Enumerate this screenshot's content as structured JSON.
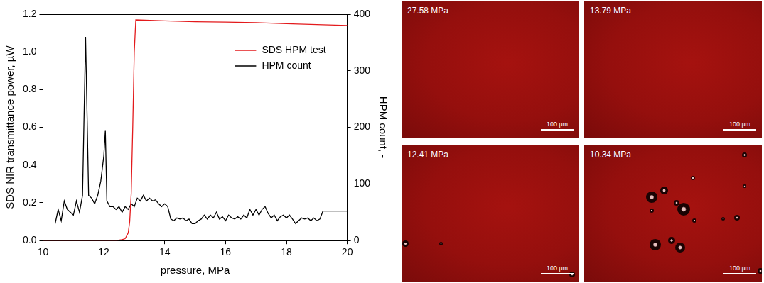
{
  "chart_data": {
    "type": "line",
    "x_label": "pressure, MPa",
    "y_label": "SDS NIR transmittance power, µW",
    "y2_label": "HPM count, -",
    "xlim": [
      10,
      20
    ],
    "xticks": [
      10,
      12,
      14,
      16,
      18,
      20
    ],
    "ylim": [
      0,
      1.2
    ],
    "yticks": [
      {
        "value": 0,
        "label": "0.0"
      },
      0.2,
      0.4,
      0.6,
      0.8,
      {
        "value": 1,
        "label": "1.0"
      },
      1.2
    ],
    "y2lim": [
      0,
      400
    ],
    "y2ticks": [
      0,
      100,
      200,
      300,
      400
    ],
    "grid": false,
    "legend": "upper right",
    "series": [
      {
        "name": "SDS HPM test",
        "color": "#e31a1c",
        "axis": "y",
        "x": [
          10,
          11,
          12,
          12.4,
          12.6,
          12.7,
          12.8,
          12.85,
          12.9,
          12.95,
          13.0,
          13.05,
          14,
          15,
          16,
          17,
          18,
          19,
          20
        ],
        "values": [
          0,
          0,
          0,
          0,
          0.005,
          0.01,
          0.04,
          0.1,
          0.25,
          0.6,
          1.0,
          1.17,
          1.165,
          1.16,
          1.158,
          1.155,
          1.15,
          1.145,
          1.14
        ]
      },
      {
        "name": "HPM count",
        "color": "#000000",
        "axis": "y2",
        "x": [
          10.4,
          10.5,
          10.6,
          10.7,
          10.8,
          10.9,
          11.0,
          11.1,
          11.2,
          11.3,
          11.4,
          11.5,
          11.6,
          11.7,
          11.8,
          11.9,
          12.0,
          12.05,
          12.1,
          12.2,
          12.3,
          12.4,
          12.5,
          12.6,
          12.7,
          12.8,
          12.9,
          13.0,
          13.1,
          13.2,
          13.3,
          13.4,
          13.5,
          13.6,
          13.7,
          13.8,
          13.9,
          14.0,
          14.1,
          14.2,
          14.3,
          14.4,
          14.5,
          14.6,
          14.7,
          14.8,
          14.9,
          15.0,
          15.1,
          15.2,
          15.3,
          15.4,
          15.5,
          15.6,
          15.7,
          15.8,
          15.9,
          16.0,
          16.1,
          16.2,
          16.3,
          16.4,
          16.5,
          16.6,
          16.7,
          16.8,
          16.9,
          17.0,
          17.1,
          17.2,
          17.3,
          17.4,
          17.5,
          17.6,
          17.7,
          17.8,
          17.9,
          18.0,
          18.1,
          18.2,
          18.3,
          18.4,
          18.5,
          18.6,
          18.7,
          18.8,
          18.9,
          19.0,
          19.1,
          19.2,
          19.3,
          19.4,
          19.5,
          19.6,
          19.7,
          19.8,
          19.9,
          20.0
        ],
        "values": [
          30,
          55,
          35,
          70,
          55,
          50,
          45,
          70,
          50,
          80,
          360,
          80,
          75,
          65,
          80,
          105,
          150,
          195,
          70,
          60,
          60,
          55,
          60,
          50,
          60,
          55,
          65,
          60,
          75,
          70,
          80,
          70,
          75,
          70,
          72,
          65,
          60,
          65,
          60,
          38,
          35,
          40,
          38,
          40,
          35,
          38,
          30,
          30,
          35,
          38,
          45,
          38,
          45,
          40,
          50,
          38,
          42,
          35,
          45,
          40,
          38,
          42,
          38,
          45,
          40,
          55,
          45,
          55,
          45,
          55,
          60,
          48,
          40,
          45,
          35,
          42,
          45,
          40,
          45,
          38,
          30,
          35,
          40,
          38,
          40,
          35,
          40,
          35,
          38,
          52,
          52,
          52,
          52,
          52,
          52,
          52,
          52,
          52
        ]
      }
    ]
  },
  "images": [
    {
      "label": "27.58 MPa",
      "scale_bar": "100 µm"
    },
    {
      "label": "13.79 MPa",
      "scale_bar": "100 µm"
    },
    {
      "label": "12.41 MPa",
      "scale_bar": "100 µm"
    },
    {
      "label": "10.34 MPa",
      "scale_bar": "100 µm"
    }
  ]
}
